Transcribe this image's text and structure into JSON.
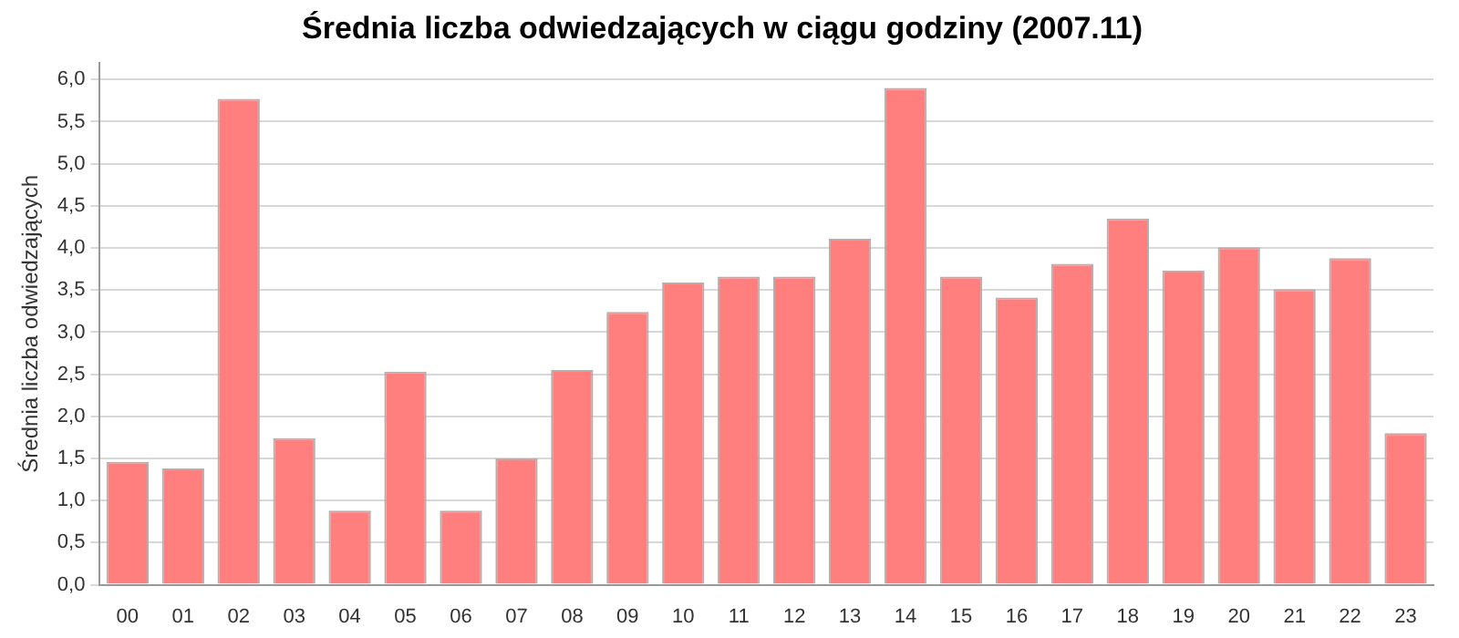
{
  "chart_data": {
    "type": "bar",
    "title": "Średnia liczba odwiedzających w ciągu godziny (2007.11)",
    "ylabel": "Średnia liczba odwiedzających",
    "categories": [
      "00",
      "01",
      "02",
      "03",
      "04",
      "05",
      "06",
      "07",
      "08",
      "09",
      "10",
      "11",
      "12",
      "13",
      "14",
      "15",
      "16",
      "17",
      "18",
      "19",
      "20",
      "21",
      "22",
      "23"
    ],
    "values": [
      1.46,
      1.38,
      5.77,
      1.74,
      0.88,
      2.53,
      0.88,
      1.5,
      2.55,
      3.24,
      3.59,
      3.66,
      3.66,
      4.11,
      5.9,
      3.66,
      3.41,
      3.81,
      4.35,
      3.73,
      4.01,
      3.51,
      3.88,
      1.8
    ],
    "color": "#ff7f7f",
    "ylim": [
      0,
      6.2
    ],
    "yticks": [
      {
        "value": 0,
        "label": "0,0"
      },
      {
        "value": 0.5,
        "label": "0,5"
      },
      {
        "value": 1,
        "label": "1,0"
      },
      {
        "value": 1.5,
        "label": "1,5"
      },
      {
        "value": 2,
        "label": "2,0"
      },
      {
        "value": 2.5,
        "label": "2,5"
      },
      {
        "value": 3,
        "label": "3,0"
      },
      {
        "value": 3.5,
        "label": "3,5"
      },
      {
        "value": 4,
        "label": "4,0"
      },
      {
        "value": 4.5,
        "label": "4,5"
      },
      {
        "value": 5,
        "label": "5,0"
      },
      {
        "value": 5.5,
        "label": "5,5"
      },
      {
        "value": 6,
        "label": "6,0"
      }
    ],
    "grid": "y",
    "legend": false
  }
}
